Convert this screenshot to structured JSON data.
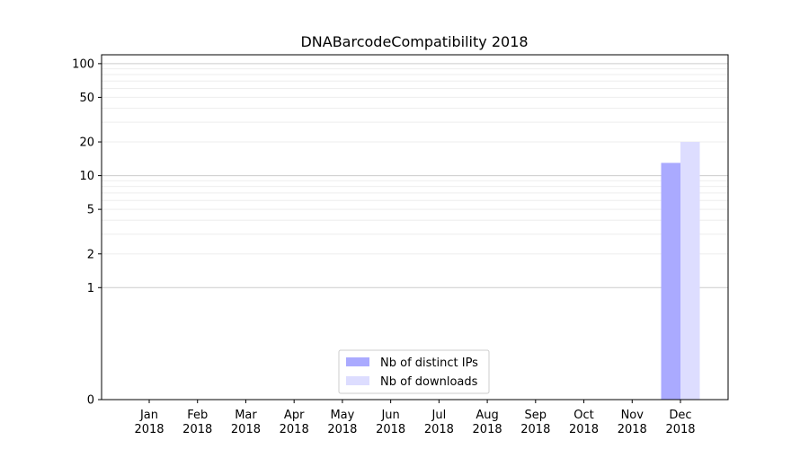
{
  "chart_data": {
    "type": "bar",
    "title": "DNABarcodeCompatibility 2018",
    "xlabel": "",
    "ylabel": "",
    "y_scale": "symlog",
    "ylim": [
      0,
      120
    ],
    "y_ticks": [
      {
        "value": 0,
        "label": "0"
      },
      {
        "value": 1,
        "label": "1"
      },
      {
        "value": 2,
        "label": "2"
      },
      {
        "value": 5,
        "label": "5"
      },
      {
        "value": 10,
        "label": "10"
      },
      {
        "value": 20,
        "label": "20"
      },
      {
        "value": 50,
        "label": "50"
      },
      {
        "value": 100,
        "label": "100"
      }
    ],
    "grid": true,
    "legend_position": "bottom-center",
    "categories": [
      {
        "month": "Jan",
        "year": "2018"
      },
      {
        "month": "Feb",
        "year": "2018"
      },
      {
        "month": "Mar",
        "year": "2018"
      },
      {
        "month": "Apr",
        "year": "2018"
      },
      {
        "month": "May",
        "year": "2018"
      },
      {
        "month": "Jun",
        "year": "2018"
      },
      {
        "month": "Jul",
        "year": "2018"
      },
      {
        "month": "Aug",
        "year": "2018"
      },
      {
        "month": "Sep",
        "year": "2018"
      },
      {
        "month": "Oct",
        "year": "2018"
      },
      {
        "month": "Nov",
        "year": "2018"
      },
      {
        "month": "Dec",
        "year": "2018"
      }
    ],
    "series": [
      {
        "name": "Nb of distinct IPs",
        "color": "#aaaaff",
        "values": [
          0,
          0,
          0,
          0,
          0,
          0,
          0,
          0,
          0,
          0,
          0,
          13
        ]
      },
      {
        "name": "Nb of downloads",
        "color": "#ddddff",
        "values": [
          0,
          0,
          0,
          0,
          0,
          0,
          0,
          0,
          0,
          0,
          0,
          20
        ]
      }
    ]
  }
}
